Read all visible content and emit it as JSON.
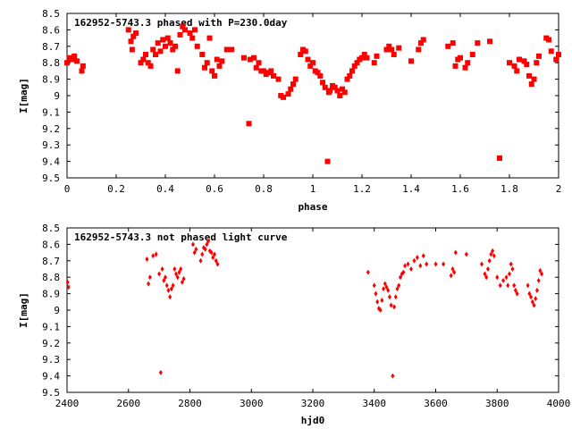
{
  "chart_data": [
    {
      "type": "scatter",
      "title": "162952-5743.3 phased with P=230.0day",
      "xlabel": "phase",
      "ylabel": "I[mag]",
      "xlim": [
        0,
        2
      ],
      "ylim": [
        8.5,
        9.5
      ],
      "y_inverted": true,
      "xticks": [
        "0",
        "0.2",
        "0.4",
        "0.6",
        "0.8",
        "1",
        "1.2",
        "1.4",
        "1.6",
        "1.8",
        "2"
      ],
      "yticks": [
        "8.5",
        "8.6",
        "8.7",
        "8.8",
        "8.9",
        "9",
        "9.1",
        "9.2",
        "9.3",
        "9.4",
        "9.5"
      ],
      "marker_color": "#ff0000",
      "x": [
        0.0,
        0.01,
        0.02,
        0.03,
        0.04,
        0.06,
        0.065,
        0.25,
        0.26,
        0.265,
        0.27,
        0.28,
        0.3,
        0.31,
        0.32,
        0.33,
        0.34,
        0.35,
        0.36,
        0.37,
        0.38,
        0.39,
        0.4,
        0.41,
        0.42,
        0.43,
        0.44,
        0.45,
        0.46,
        0.47,
        0.48,
        0.5,
        0.51,
        0.52,
        0.53,
        0.55,
        0.56,
        0.57,
        0.58,
        0.59,
        0.6,
        0.61,
        0.62,
        0.63,
        0.65,
        0.67,
        0.72,
        0.74,
        0.745,
        0.76,
        0.77,
        0.78,
        0.79,
        0.8,
        0.81,
        0.82,
        0.83,
        0.84,
        0.86,
        0.87,
        0.88,
        0.9,
        0.91,
        0.92,
        0.93,
        0.95,
        0.96,
        0.97,
        0.98,
        0.99,
        1.0,
        1.01,
        1.02,
        1.03,
        1.04,
        1.05,
        1.06,
        1.065,
        1.07,
        1.08,
        1.09,
        1.1,
        1.11,
        1.12,
        1.13,
        1.14,
        1.15,
        1.16,
        1.17,
        1.18,
        1.19,
        1.2,
        1.21,
        1.22,
        1.25,
        1.26,
        1.3,
        1.31,
        1.32,
        1.33,
        1.35,
        1.4,
        1.43,
        1.44,
        1.45,
        1.55,
        1.57,
        1.58,
        1.59,
        1.6,
        1.62,
        1.63,
        1.65,
        1.67,
        1.72,
        1.76,
        1.8,
        1.82,
        1.83,
        1.84,
        1.86,
        1.87,
        1.88,
        1.89,
        1.9,
        1.91,
        1.92,
        1.95,
        1.96,
        1.97,
        1.99,
        2.0
      ],
      "y": [
        8.8,
        8.77,
        8.78,
        8.76,
        8.79,
        8.85,
        8.82,
        8.6,
        8.67,
        8.72,
        8.64,
        8.62,
        8.8,
        8.78,
        8.75,
        8.8,
        8.82,
        8.72,
        8.75,
        8.68,
        8.73,
        8.66,
        8.7,
        8.65,
        8.68,
        8.72,
        8.7,
        8.85,
        8.63,
        8.58,
        8.6,
        8.62,
        8.65,
        8.6,
        8.7,
        8.75,
        8.83,
        8.8,
        8.65,
        8.85,
        8.88,
        8.78,
        8.82,
        8.79,
        8.72,
        8.72,
        8.77,
        9.17,
        8.78,
        8.77,
        8.83,
        8.8,
        8.85,
        8.85,
        8.87,
        8.86,
        8.85,
        8.88,
        8.9,
        9.0,
        9.01,
        8.99,
        8.96,
        8.93,
        8.9,
        8.75,
        8.72,
        8.73,
        8.78,
        8.82,
        8.8,
        8.85,
        8.86,
        8.88,
        8.92,
        8.95,
        9.4,
        8.98,
        8.97,
        8.94,
        8.95,
        8.97,
        9.0,
        8.96,
        8.98,
        8.9,
        8.88,
        8.85,
        8.82,
        8.8,
        8.78,
        8.77,
        8.75,
        8.77,
        8.8,
        8.76,
        8.72,
        8.7,
        8.72,
        8.75,
        8.71,
        8.79,
        8.72,
        8.68,
        8.66,
        8.7,
        8.68,
        8.82,
        8.78,
        8.77,
        8.83,
        8.8,
        8.75,
        8.68,
        8.67,
        9.38,
        8.8,
        8.82,
        8.85,
        8.78,
        8.79,
        8.81,
        8.88,
        8.93,
        8.9,
        8.8,
        8.76,
        8.65,
        8.66,
        8.73,
        8.78,
        8.75
      ]
    },
    {
      "type": "scatter",
      "title": "162952-5743.3 not phased light curve",
      "xlabel": "hjd0",
      "ylabel": "I[mag]",
      "xlim": [
        2400,
        4000
      ],
      "ylim": [
        8.5,
        9.5
      ],
      "y_inverted": true,
      "xticks": [
        "2400",
        "2600",
        "2800",
        "3000",
        "3200",
        "3400",
        "3600",
        "3800",
        "4000"
      ],
      "yticks": [
        "8.5",
        "8.6",
        "8.7",
        "8.8",
        "8.9",
        "9",
        "9.1",
        "9.2",
        "9.3",
        "9.4",
        "9.5"
      ],
      "marker_color": "#ff0000",
      "x": [
        2402,
        2405,
        2660,
        2665,
        2670,
        2680,
        2690,
        2700,
        2705,
        2710,
        2715,
        2720,
        2725,
        2730,
        2735,
        2740,
        2745,
        2750,
        2755,
        2760,
        2765,
        2770,
        2775,
        2780,
        2810,
        2815,
        2820,
        2835,
        2840,
        2845,
        2850,
        2855,
        2860,
        2865,
        2870,
        2875,
        2880,
        2885,
        2890,
        3380,
        3400,
        3405,
        3410,
        3415,
        3420,
        3425,
        3430,
        3435,
        3440,
        3445,
        3450,
        3455,
        3460,
        3465,
        3470,
        3475,
        3480,
        3485,
        3490,
        3495,
        3500,
        3510,
        3520,
        3530,
        3540,
        3550,
        3560,
        3570,
        3600,
        3625,
        3650,
        3655,
        3660,
        3665,
        3700,
        3750,
        3760,
        3765,
        3770,
        3775,
        3780,
        3785,
        3790,
        3800,
        3810,
        3820,
        3830,
        3835,
        3840,
        3845,
        3850,
        3855,
        3860,
        3865,
        3900,
        3905,
        3910,
        3915,
        3920,
        3925,
        3930,
        3935,
        3940,
        3945
      ],
      "y": [
        8.83,
        8.86,
        8.69,
        8.84,
        8.8,
        8.67,
        8.66,
        8.78,
        9.38,
        8.75,
        8.82,
        8.8,
        8.85,
        8.88,
        8.92,
        8.87,
        8.85,
        8.75,
        8.78,
        8.8,
        8.77,
        8.75,
        8.83,
        8.81,
        8.6,
        8.65,
        8.63,
        8.7,
        8.66,
        8.62,
        8.63,
        8.6,
        8.58,
        8.64,
        8.65,
        8.68,
        8.66,
        8.7,
        8.72,
        8.77,
        8.85,
        8.9,
        8.95,
        8.99,
        9.0,
        8.94,
        8.87,
        8.84,
        8.86,
        8.88,
        8.92,
        8.97,
        9.4,
        8.98,
        8.92,
        8.87,
        8.85,
        8.8,
        8.78,
        8.77,
        8.73,
        8.72,
        8.75,
        8.7,
        8.68,
        8.73,
        8.67,
        8.72,
        8.72,
        8.72,
        8.79,
        8.75,
        8.77,
        8.65,
        8.66,
        8.72,
        8.78,
        8.8,
        8.75,
        8.7,
        8.66,
        8.64,
        8.67,
        8.8,
        8.85,
        8.82,
        8.8,
        8.85,
        8.78,
        8.72,
        8.75,
        8.85,
        8.88,
        8.9,
        8.85,
        8.9,
        8.92,
        8.95,
        8.97,
        8.93,
        8.88,
        8.82,
        8.76,
        8.78
      ]
    }
  ]
}
